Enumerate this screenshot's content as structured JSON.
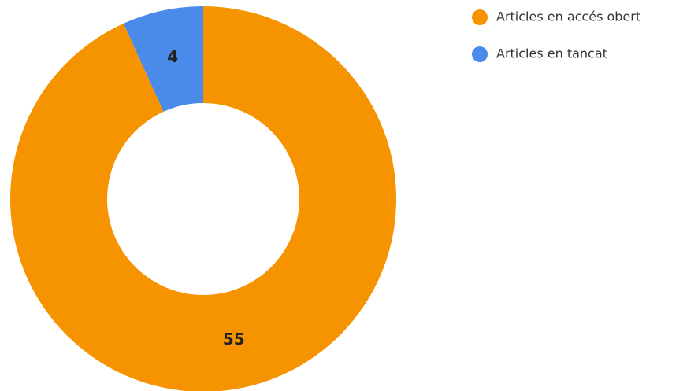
{
  "chart_data": {
    "type": "donut",
    "categories": [
      "Articles en accés obert",
      "Articles en tancat"
    ],
    "values": [
      55,
      4
    ],
    "colors": [
      "#f59400",
      "#4a8ae8"
    ]
  }
}
